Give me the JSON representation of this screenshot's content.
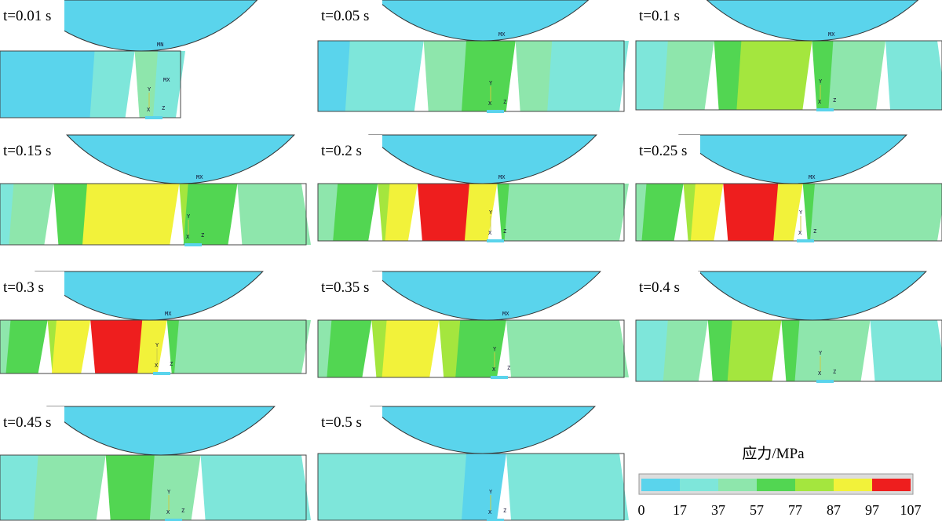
{
  "panels": [
    {
      "label": "t=0.01 s",
      "markers": [
        "MN",
        "MX"
      ]
    },
    {
      "label": "t=0.05 s",
      "markers": [
        "MX"
      ]
    },
    {
      "label": "t=0.1 s",
      "markers": [
        "MX"
      ]
    },
    {
      "label": "t=0.15 s",
      "markers": [
        "MX"
      ]
    },
    {
      "label": "t=0.2 s",
      "markers": [
        "MX"
      ]
    },
    {
      "label": "t=0.25 s",
      "markers": [
        "MX"
      ]
    },
    {
      "label": "t=0.3 s",
      "markers": [
        "MX"
      ]
    },
    {
      "label": "t=0.35 s",
      "markers": [
        "MX"
      ]
    },
    {
      "label": "t=0.4 s",
      "markers": []
    },
    {
      "label": "t=0.45 s",
      "markers": []
    },
    {
      "label": "t=0.5 s",
      "markers": []
    }
  ],
  "triad": [
    "Y",
    "X",
    "Z"
  ],
  "legend": {
    "title": "应力/MPa",
    "ticks": [
      0,
      17,
      37,
      57,
      77,
      87,
      97,
      107
    ],
    "colors": [
      "#5ad4ec",
      "#7ee6da",
      "#8ee6ac",
      "#52d652",
      "#a4e63e",
      "#f2f23a",
      "#ee1e1e"
    ]
  }
}
